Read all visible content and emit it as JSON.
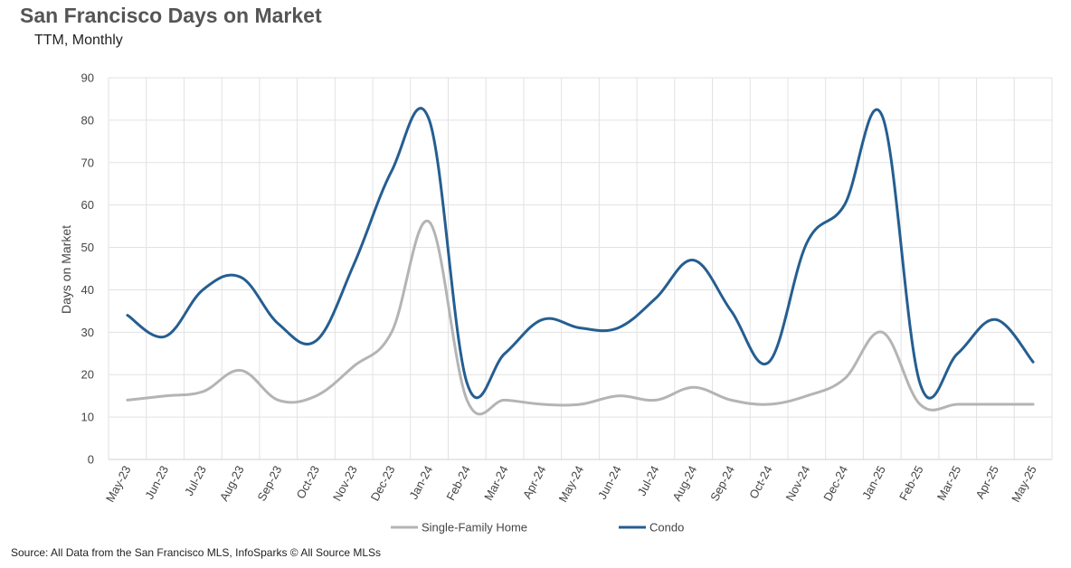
{
  "header": {
    "title": "San Francisco Days on Market",
    "subtitle": "TTM, Monthly"
  },
  "footer": {
    "source": "Source: All Data from the San Francisco MLS, InfoSparks © All Source MLSs"
  },
  "chart_data": {
    "type": "line",
    "title": "San Francisco Days on Market",
    "subtitle": "TTM, Monthly",
    "xlabel": "",
    "ylabel": "Days on Market",
    "ylim": [
      0,
      90
    ],
    "yticks": [
      0,
      10,
      20,
      30,
      40,
      50,
      60,
      70,
      80,
      90
    ],
    "grid": true,
    "legend": "bottom",
    "categories": [
      "May-23",
      "Jun-23",
      "Jul-23",
      "Aug-23",
      "Sep-23",
      "Oct-23",
      "Nov-23",
      "Dec-23",
      "Jan-24",
      "Feb-24",
      "Mar-24",
      "Apr-24",
      "May-24",
      "Jun-24",
      "Jul-24",
      "Aug-24",
      "Sep-24",
      "Oct-24",
      "Nov-24",
      "Dec-24",
      "Jan-25",
      "Feb-25",
      "Mar-25",
      "Apr-25",
      "May-25"
    ],
    "series": [
      {
        "name": "Single-Family Home",
        "color": "#b4b4b4",
        "values": [
          14,
          15,
          16,
          21,
          14,
          15,
          22,
          30,
          56,
          14,
          14,
          13,
          13,
          15,
          14,
          17,
          14,
          13,
          15,
          19,
          30,
          13,
          13,
          13,
          13
        ]
      },
      {
        "name": "Condo",
        "color": "#255e91",
        "values": [
          34,
          29,
          40,
          43,
          32,
          28,
          46,
          68,
          80,
          18,
          25,
          33,
          31,
          31,
          38,
          47,
          35,
          23,
          51,
          60,
          81,
          18,
          25,
          33,
          23
        ]
      }
    ]
  }
}
